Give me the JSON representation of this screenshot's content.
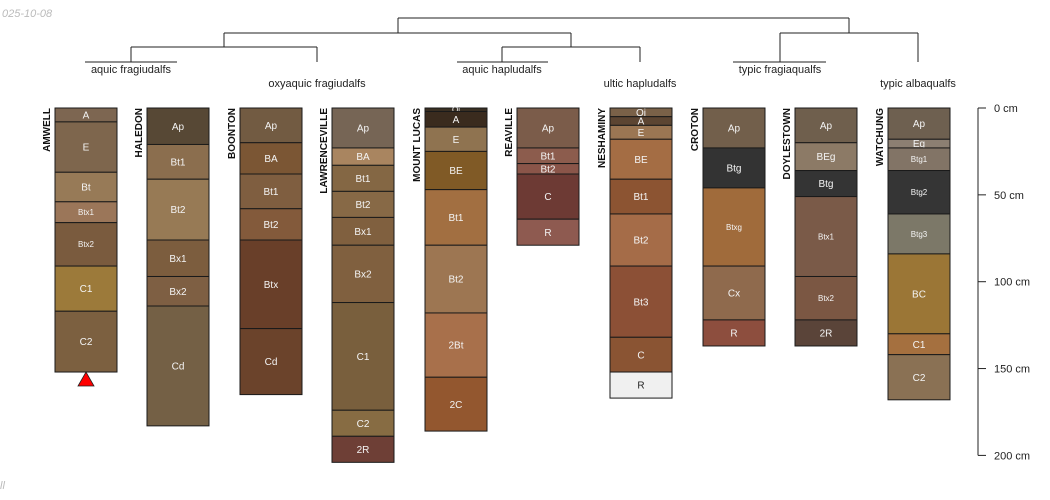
{
  "meta": {
    "date_text": "025-10-08",
    "footer_text": "ll"
  },
  "chart_data": {
    "type": "soil-profile-sketch",
    "depth_units": "cm",
    "depth_axis": {
      "ticks": [
        0,
        50,
        100,
        150,
        200
      ],
      "tick_labels": [
        "0 cm",
        "50 cm",
        "100 cm",
        "150 cm",
        "200 cm"
      ],
      "range": [
        0,
        200
      ]
    },
    "groups": [
      {
        "label": "aquic fragiudalfs",
        "profiles": [
          0,
          1
        ]
      },
      {
        "label": "oxyaquic fragiudalfs",
        "profiles": [
          2,
          3
        ]
      },
      {
        "label": "aquic hapludalfs",
        "profiles": [
          4,
          5
        ]
      },
      {
        "label": "ultic hapludalfs",
        "profiles": [
          6
        ]
      },
      {
        "label": "typic fragiaqualfs",
        "profiles": [
          7,
          8
        ]
      },
      {
        "label": "typic albaqualfs",
        "profiles": [
          9
        ]
      }
    ],
    "profiles": [
      {
        "name": "AMWELL",
        "truncated": true,
        "horizons": [
          {
            "name": "A",
            "top": 0,
            "bottom": 8,
            "color": "#7d6651"
          },
          {
            "name": "E",
            "top": 8,
            "bottom": 37,
            "color": "#7e664d"
          },
          {
            "name": "Bt",
            "top": 37,
            "bottom": 54,
            "color": "#977a57"
          },
          {
            "name": "Btx1",
            "top": 54,
            "bottom": 66,
            "color": "#9b7659"
          },
          {
            "name": "Btx2",
            "top": 66,
            "bottom": 91,
            "color": "#7a5b3e"
          },
          {
            "name": "C1",
            "top": 91,
            "bottom": 117,
            "color": "#9c7a3a"
          },
          {
            "name": "C2",
            "top": 117,
            "bottom": 152,
            "color": "#7c6040"
          }
        ]
      },
      {
        "name": "HALEDON",
        "truncated": false,
        "horizons": [
          {
            "name": "Ap",
            "top": 0,
            "bottom": 21,
            "color": "#574835"
          },
          {
            "name": "Bt1",
            "top": 21,
            "bottom": 41,
            "color": "#8b6e4e"
          },
          {
            "name": "Bt2",
            "top": 41,
            "bottom": 76,
            "color": "#977a55"
          },
          {
            "name": "Bx1",
            "top": 76,
            "bottom": 97,
            "color": "#7c5d3e"
          },
          {
            "name": "Bx2",
            "top": 97,
            "bottom": 114,
            "color": "#7e5f43"
          },
          {
            "name": "Cd",
            "top": 114,
            "bottom": 183,
            "color": "#746045"
          }
        ]
      },
      {
        "name": "BOONTON",
        "truncated": false,
        "horizons": [
          {
            "name": "Ap",
            "top": 0,
            "bottom": 20,
            "color": "#725b42"
          },
          {
            "name": "BA",
            "top": 20,
            "bottom": 38,
            "color": "#7b5634"
          },
          {
            "name": "Bt1",
            "top": 38,
            "bottom": 58,
            "color": "#7f5e40"
          },
          {
            "name": "Bt2",
            "top": 58,
            "bottom": 76,
            "color": "#835a3b"
          },
          {
            "name": "Btx",
            "top": 76,
            "bottom": 127,
            "color": "#693f29"
          },
          {
            "name": "Cd",
            "top": 127,
            "bottom": 165,
            "color": "#6b432b"
          }
        ]
      },
      {
        "name": "LAWRENCEVILLE",
        "truncated": false,
        "horizons": [
          {
            "name": "Ap",
            "top": 0,
            "bottom": 23,
            "color": "#766555"
          },
          {
            "name": "BA",
            "top": 23,
            "bottom": 33,
            "color": "#a98560"
          },
          {
            "name": "Bt1",
            "top": 33,
            "bottom": 48,
            "color": "#846744"
          },
          {
            "name": "Bt2",
            "top": 48,
            "bottom": 63,
            "color": "#876946"
          },
          {
            "name": "Bx1",
            "top": 63,
            "bottom": 79,
            "color": "#80603f"
          },
          {
            "name": "Bx2",
            "top": 79,
            "bottom": 112,
            "color": "#80603f"
          },
          {
            "name": "C1",
            "top": 112,
            "bottom": 174,
            "color": "#795f3d"
          },
          {
            "name": "C2",
            "top": 174,
            "bottom": 189,
            "color": "#876c43"
          },
          {
            "name": "2R",
            "top": 189,
            "bottom": 204,
            "color": "#6e3f36"
          }
        ]
      },
      {
        "name": "MOUNT LUCAS",
        "truncated": false,
        "horizons": [
          {
            "name": "Oi",
            "top": 0,
            "bottom": 2,
            "color": "#3b3023"
          },
          {
            "name": "A",
            "top": 2,
            "bottom": 11,
            "color": "#3a2b1e"
          },
          {
            "name": "E",
            "top": 11,
            "bottom": 25,
            "color": "#8f7350"
          },
          {
            "name": "BE",
            "top": 25,
            "bottom": 47,
            "color": "#805a26"
          },
          {
            "name": "Bt1",
            "top": 47,
            "bottom": 79,
            "color": "#a26f41"
          },
          {
            "name": "Bt2",
            "top": 79,
            "bottom": 118,
            "color": "#9d7652"
          },
          {
            "name": "2Bt",
            "top": 118,
            "bottom": 155,
            "color": "#a8704b"
          },
          {
            "name": "2C",
            "top": 155,
            "bottom": 186,
            "color": "#93572f"
          }
        ]
      },
      {
        "name": "REAVILLE",
        "truncated": false,
        "horizons": [
          {
            "name": "Ap",
            "top": 0,
            "bottom": 23,
            "color": "#7b5c4a"
          },
          {
            "name": "Bt1",
            "top": 23,
            "bottom": 32,
            "color": "#8c5c4d"
          },
          {
            "name": "Bt2",
            "top": 32,
            "bottom": 38,
            "color": "#8a5549"
          },
          {
            "name": "C",
            "top": 38,
            "bottom": 64,
            "color": "#6d3a34"
          },
          {
            "name": "R",
            "top": 64,
            "bottom": 79,
            "color": "#8e5a50"
          }
        ]
      },
      {
        "name": "NESHAMINY",
        "truncated": false,
        "horizons": [
          {
            "name": "Oi",
            "top": 0,
            "bottom": 5,
            "color": "#7a6148"
          },
          {
            "name": "A",
            "top": 5,
            "bottom": 10,
            "color": "#5c4532"
          },
          {
            "name": "E",
            "top": 10,
            "bottom": 18,
            "color": "#9b7653"
          },
          {
            "name": "BE",
            "top": 18,
            "bottom": 41,
            "color": "#a46d44"
          },
          {
            "name": "Bt1",
            "top": 41,
            "bottom": 61,
            "color": "#8c5432"
          },
          {
            "name": "Bt2",
            "top": 61,
            "bottom": 91,
            "color": "#a56c48"
          },
          {
            "name": "Bt3",
            "top": 91,
            "bottom": 132,
            "color": "#8c5036"
          },
          {
            "name": "C",
            "top": 132,
            "bottom": 152,
            "color": "#8a5433"
          },
          {
            "name": "R",
            "top": 152,
            "bottom": 167,
            "color": "#f0f0f0"
          }
        ]
      },
      {
        "name": "CROTON",
        "truncated": false,
        "horizons": [
          {
            "name": "Ap",
            "top": 0,
            "bottom": 23,
            "color": "#725f4b"
          },
          {
            "name": "Btg",
            "top": 23,
            "bottom": 46,
            "color": "#333333"
          },
          {
            "name": "Btxg",
            "top": 46,
            "bottom": 91,
            "color": "#a06b3b"
          },
          {
            "name": "Cx",
            "top": 91,
            "bottom": 122,
            "color": "#8f6a4d"
          },
          {
            "name": "R",
            "top": 122,
            "bottom": 137,
            "color": "#8d4e3e"
          }
        ]
      },
      {
        "name": "DOYLESTOWN",
        "truncated": false,
        "horizons": [
          {
            "name": "Ap",
            "top": 0,
            "bottom": 20,
            "color": "#6f5f4d"
          },
          {
            "name": "BEg",
            "top": 20,
            "bottom": 36,
            "color": "#8c7a66"
          },
          {
            "name": "Btg",
            "top": 36,
            "bottom": 51,
            "color": "#343434"
          },
          {
            "name": "Btx1",
            "top": 51,
            "bottom": 97,
            "color": "#7a5a48"
          },
          {
            "name": "Btx2",
            "top": 97,
            "bottom": 122,
            "color": "#7b5743"
          },
          {
            "name": "2R",
            "top": 122,
            "bottom": 137,
            "color": "#5a4439"
          }
        ]
      },
      {
        "name": "WATCHUNG",
        "truncated": false,
        "horizons": [
          {
            "name": "Ap",
            "top": 0,
            "bottom": 18,
            "color": "#6e6050"
          },
          {
            "name": "Eg",
            "top": 18,
            "bottom": 23,
            "color": "#8c7f72"
          },
          {
            "name": "Btg1",
            "top": 23,
            "bottom": 36,
            "color": "#827466"
          },
          {
            "name": "Btg2",
            "top": 36,
            "bottom": 61,
            "color": "#353535"
          },
          {
            "name": "Btg3",
            "top": 61,
            "bottom": 84,
            "color": "#7c7868"
          },
          {
            "name": "BC",
            "top": 84,
            "bottom": 130,
            "color": "#9b7636"
          },
          {
            "name": "C1",
            "top": 130,
            "bottom": 142,
            "color": "#a5703f"
          },
          {
            "name": "C2",
            "top": 142,
            "bottom": 168,
            "color": "#8a7154"
          }
        ]
      }
    ]
  }
}
